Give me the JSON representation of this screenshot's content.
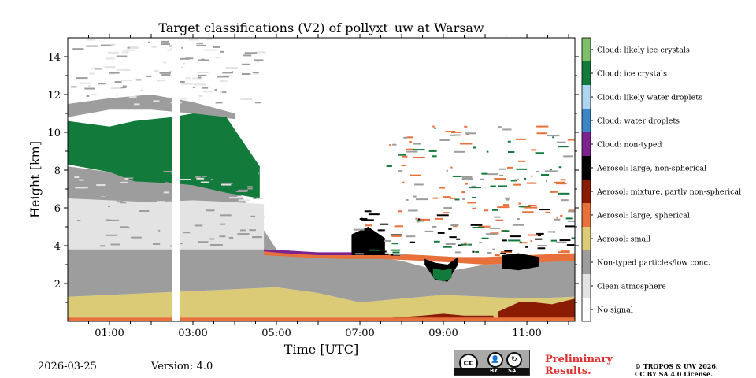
{
  "chart_data": {
    "type": "heatmap",
    "title": "Target classifications (V2) of pollyxt_uw at Warsaw",
    "xlabel": "Time [UTC]",
    "ylabel": "Height [km]",
    "xlim": [
      0.0,
      12.15
    ],
    "ylim": [
      0.0,
      15.0
    ],
    "x_ticks": [
      {
        "value": 1,
        "label": "01:00"
      },
      {
        "value": 3,
        "label": "03:00"
      },
      {
        "value": 5,
        "label": "05:00"
      },
      {
        "value": 7,
        "label": "07:00"
      },
      {
        "value": 9,
        "label": "09:00"
      },
      {
        "value": 11,
        "label": "11:00"
      }
    ],
    "y_ticks": [
      {
        "value": 2,
        "label": "2"
      },
      {
        "value": 4,
        "label": "4"
      },
      {
        "value": 6,
        "label": "6"
      },
      {
        "value": 8,
        "label": "8"
      },
      {
        "value": 10,
        "label": "10"
      },
      {
        "value": 12,
        "label": "12"
      },
      {
        "value": 14,
        "label": "14"
      }
    ],
    "colorbar": [
      {
        "label": "Cloud: likely ice crystals",
        "color": "#7fbf6a"
      },
      {
        "label": "Cloud: ice crystals",
        "color": "#127a3b"
      },
      {
        "label": "Cloud: likely water droplets",
        "color": "#aed4f0"
      },
      {
        "label": "Cloud: water droplets",
        "color": "#3b86c6"
      },
      {
        "label": "Cloud: non-typed",
        "color": "#7d2390"
      },
      {
        "label": "Aerosol: large, non-spherical",
        "color": "#000000"
      },
      {
        "label": "Aerosol: mixture, partly non-spherical",
        "color": "#8a1c04"
      },
      {
        "label": "Aerosol: large, spherical",
        "color": "#e8703a"
      },
      {
        "label": "Aerosol: small",
        "color": "#dccb76"
      },
      {
        "label": "Non-typed particles/low conc.",
        "color": "#9d9d9d"
      },
      {
        "label": "Clean atmosphere",
        "color": "#e3e3e3"
      },
      {
        "label": "No signal",
        "color": "#ffffff"
      }
    ],
    "data_gap": {
      "start": 2.5,
      "end": 2.68
    },
    "layers": [
      {
        "class": "Aerosol: small",
        "x": [
          0.0,
          2.0,
          4.0,
          5.0,
          6.0,
          7.0,
          8.0,
          9.0,
          10.0,
          11.0,
          12.15
        ],
        "bottom": [
          0.2,
          0.2,
          0.2,
          0.2,
          0.2,
          0.2,
          0.2,
          0.2,
          0.2,
          0.2,
          0.2
        ],
        "top": [
          1.3,
          1.5,
          1.7,
          1.8,
          1.5,
          1.0,
          1.2,
          1.4,
          1.3,
          1.2,
          1.3
        ]
      },
      {
        "class": "Non-typed particles/low conc.",
        "x": [
          0.0,
          2.0,
          4.0,
          5.0,
          6.0,
          7.0,
          8.0,
          9.0,
          10.0,
          11.0,
          12.15
        ],
        "bottom": [
          1.3,
          1.5,
          1.7,
          1.8,
          1.5,
          1.0,
          1.2,
          1.4,
          1.3,
          1.2,
          1.3
        ],
        "top": [
          8.2,
          7.6,
          7.2,
          3.8,
          3.6,
          3.5,
          3.2,
          2.6,
          3.0,
          3.1,
          3.3
        ]
      },
      {
        "class": "Clean atmosphere",
        "x": [
          0.0,
          1.0,
          2.0,
          3.0,
          4.0,
          4.7
        ],
        "bottom": [
          3.8,
          3.8,
          3.8,
          3.8,
          3.8,
          3.8
        ],
        "top": [
          6.5,
          6.4,
          6.3,
          6.4,
          6.3,
          6.2
        ]
      },
      {
        "class": "Non-typed particles/low conc.",
        "x": [
          0.0,
          1.0,
          2.0,
          3.0,
          4.0
        ],
        "bottom": [
          10.8,
          11.2,
          11.2,
          11.0,
          10.7
        ],
        "top": [
          11.5,
          11.8,
          12.0,
          11.6,
          11.0
        ]
      },
      {
        "class": "Cloud: ice crystals",
        "x": [
          0.0,
          1.0,
          1.6,
          2.5,
          3.0,
          3.8,
          4.6
        ],
        "bottom": [
          8.3,
          7.9,
          7.4,
          7.3,
          7.2,
          6.8,
          6.5
        ],
        "top": [
          10.6,
          10.3,
          10.6,
          10.8,
          11.0,
          10.8,
          8.2
        ]
      },
      {
        "class": "Aerosol: mixture, partly non-spherical",
        "x": [
          10.3,
          10.8,
          11.2,
          11.6,
          12.15
        ],
        "bottom": [
          0.05,
          0.05,
          0.05,
          0.05,
          0.05
        ],
        "top": [
          0.5,
          1.0,
          1.0,
          0.9,
          1.2
        ]
      },
      {
        "class": "Aerosol: mixture, partly non-spherical",
        "x": [
          7.5,
          8.5,
          9.0,
          9.5,
          10.2
        ],
        "bottom": [
          0.05,
          0.05,
          0.05,
          0.05,
          0.05
        ],
        "top": [
          0.15,
          0.3,
          0.4,
          0.3,
          0.3
        ]
      },
      {
        "class": "Aerosol: large, spherical",
        "x": [
          0.0,
          4.0,
          6.0,
          8.0,
          10.0,
          12.15
        ],
        "bottom": [
          0.0,
          0.0,
          0.0,
          0.0,
          0.0,
          0.0
        ],
        "top": [
          0.2,
          0.2,
          0.2,
          0.2,
          0.2,
          0.2
        ]
      },
      {
        "class": "Aerosol: large, spherical",
        "x": [
          4.7,
          5.5,
          6.5,
          7.5,
          8.5,
          9.3,
          10.0,
          11.0,
          12.15
        ],
        "bottom": [
          3.5,
          3.4,
          3.3,
          3.3,
          3.2,
          3.1,
          3.0,
          3.1,
          3.2
        ],
        "top": [
          3.8,
          3.6,
          3.5,
          3.6,
          3.5,
          3.4,
          3.4,
          3.5,
          3.6
        ]
      },
      {
        "class": "Aerosol: large, non-spherical",
        "x": [
          8.55,
          8.8,
          9.1,
          9.35
        ],
        "bottom": [
          3.0,
          2.2,
          2.1,
          3.0
        ],
        "top": [
          3.3,
          3.1,
          3.0,
          3.4
        ]
      },
      {
        "class": "Cloud: ice crystals",
        "x": [
          8.75,
          9.0,
          9.2
        ],
        "bottom": [
          2.3,
          2.1,
          2.3
        ],
        "top": [
          2.8,
          2.7,
          2.8
        ]
      },
      {
        "class": "Aerosol: large, non-spherical",
        "x": [
          6.8,
          7.2,
          7.6
        ],
        "bottom": [
          3.5,
          3.5,
          3.5
        ],
        "top": [
          4.6,
          5.0,
          4.4
        ]
      },
      {
        "class": "Aerosol: large, non-spherical",
        "x": [
          10.4,
          10.8,
          11.3
        ],
        "bottom": [
          2.8,
          2.7,
          2.9
        ],
        "top": [
          3.5,
          3.6,
          3.4
        ]
      },
      {
        "class": "Cloud: non-typed",
        "x": [
          4.7,
          5.2,
          6.0,
          6.8
        ],
        "bottom": [
          3.7,
          3.6,
          3.5,
          3.5
        ],
        "top": [
          3.8,
          3.75,
          3.65,
          3.65
        ]
      }
    ],
    "speckle_regions": [
      {
        "x": [
          0.0,
          4.6
        ],
        "y": [
          11.5,
          15.0
        ],
        "classes": [
          "Non-typed particles/low conc.",
          "Clean atmosphere"
        ]
      },
      {
        "x": [
          0.0,
          4.6
        ],
        "y": [
          4.0,
          8.0
        ],
        "classes": [
          "Clean atmosphere",
          "Non-typed particles/low conc."
        ]
      },
      {
        "x": [
          6.8,
          12.15
        ],
        "y": [
          3.5,
          6.0
        ],
        "classes": [
          "Aerosol: large, non-spherical",
          "Cloud: ice crystals",
          "Aerosol: large, spherical",
          "Non-typed particles/low conc."
        ]
      },
      {
        "x": [
          7.5,
          12.0
        ],
        "y": [
          6.0,
          10.5
        ],
        "classes": [
          "Non-typed particles/low conc.",
          "Cloud: ice crystals",
          "Aerosol: large, spherical"
        ]
      }
    ]
  },
  "footer": {
    "date": "2026-03-25",
    "version": "Version: 4.0",
    "preliminary_line1": "Preliminary",
    "preliminary_line2": "Results.",
    "copyright_line1": "© TROPOS & UW 2026.",
    "copyright_line2": "CC BY SA 4.0 License.",
    "license_badge": {
      "cc": "cc",
      "by": "BY",
      "sa": "SA"
    }
  }
}
